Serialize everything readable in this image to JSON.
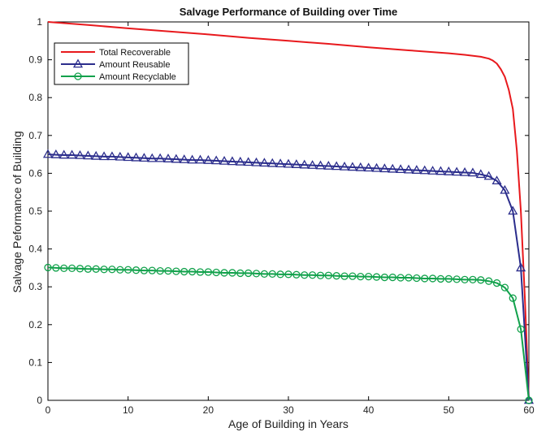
{
  "chart_data": {
    "type": "line",
    "title": "Salvage Performance of Building over Time",
    "xlabel": "Age of Building in Years",
    "ylabel": "Salvage Peformance of Building",
    "xlim": [
      0,
      60
    ],
    "ylim": [
      0,
      1
    ],
    "xticks": [
      "0",
      "10",
      "20",
      "30",
      "40",
      "50",
      "60"
    ],
    "yticks": [
      "0",
      "0.1",
      "0.2",
      "0.3",
      "0.4",
      "0.5",
      "0.6",
      "0.7",
      "0.8",
      "0.9",
      "1"
    ],
    "grid": false,
    "legend_position": "top-left",
    "series": [
      {
        "name": "Total Recoverable",
        "color": "#e8191d",
        "marker": "none",
        "x": [
          0,
          5,
          10,
          15,
          20,
          25,
          30,
          35,
          40,
          45,
          50,
          52,
          54,
          55,
          55.5,
          56,
          56.5,
          57,
          57.5,
          58,
          58.5,
          59,
          59.5,
          60
        ],
        "y": [
          1.0,
          0.992,
          0.983,
          0.975,
          0.967,
          0.958,
          0.95,
          0.942,
          0.933,
          0.925,
          0.917,
          0.913,
          0.908,
          0.903,
          0.898,
          0.89,
          0.875,
          0.855,
          0.82,
          0.77,
          0.66,
          0.5,
          0.27,
          0.0
        ]
      },
      {
        "name": "Amount Reusable",
        "color": "#2b2d8c",
        "marker": "triangle",
        "x": [
          0,
          1,
          2,
          3,
          4,
          5,
          6,
          7,
          8,
          9,
          10,
          11,
          12,
          13,
          14,
          15,
          16,
          17,
          18,
          19,
          20,
          21,
          22,
          23,
          24,
          25,
          26,
          27,
          28,
          29,
          30,
          31,
          32,
          33,
          34,
          35,
          36,
          37,
          38,
          39,
          40,
          41,
          42,
          43,
          44,
          45,
          46,
          47,
          48,
          49,
          50,
          51,
          52,
          53,
          54,
          55,
          56,
          57,
          58,
          59,
          60
        ],
        "y": [
          0.65,
          0.649,
          0.648,
          0.648,
          0.647,
          0.646,
          0.645,
          0.644,
          0.644,
          0.643,
          0.642,
          0.641,
          0.64,
          0.639,
          0.639,
          0.638,
          0.637,
          0.636,
          0.635,
          0.635,
          0.634,
          0.633,
          0.632,
          0.631,
          0.63,
          0.629,
          0.628,
          0.627,
          0.626,
          0.625,
          0.624,
          0.623,
          0.622,
          0.621,
          0.62,
          0.619,
          0.618,
          0.617,
          0.616,
          0.615,
          0.614,
          0.613,
          0.612,
          0.611,
          0.61,
          0.609,
          0.608,
          0.607,
          0.606,
          0.605,
          0.604,
          0.603,
          0.602,
          0.601,
          0.597,
          0.592,
          0.58,
          0.555,
          0.5,
          0.35,
          0.0
        ]
      },
      {
        "name": "Amount Recyclable",
        "color": "#11a14b",
        "marker": "circle",
        "x": [
          0,
          1,
          2,
          3,
          4,
          5,
          6,
          7,
          8,
          9,
          10,
          11,
          12,
          13,
          14,
          15,
          16,
          17,
          18,
          19,
          20,
          21,
          22,
          23,
          24,
          25,
          26,
          27,
          28,
          29,
          30,
          31,
          32,
          33,
          34,
          35,
          36,
          37,
          38,
          39,
          40,
          41,
          42,
          43,
          44,
          45,
          46,
          47,
          48,
          49,
          50,
          51,
          52,
          53,
          54,
          55,
          56,
          57,
          58,
          59,
          60
        ],
        "y": [
          0.351,
          0.35,
          0.349,
          0.349,
          0.348,
          0.347,
          0.347,
          0.346,
          0.346,
          0.345,
          0.345,
          0.344,
          0.343,
          0.343,
          0.342,
          0.342,
          0.341,
          0.34,
          0.34,
          0.339,
          0.339,
          0.338,
          0.337,
          0.337,
          0.336,
          0.336,
          0.335,
          0.334,
          0.334,
          0.333,
          0.333,
          0.332,
          0.331,
          0.331,
          0.33,
          0.33,
          0.329,
          0.328,
          0.328,
          0.327,
          0.327,
          0.326,
          0.325,
          0.325,
          0.324,
          0.324,
          0.323,
          0.322,
          0.322,
          0.321,
          0.321,
          0.32,
          0.319,
          0.319,
          0.318,
          0.315,
          0.31,
          0.298,
          0.27,
          0.188,
          0.0
        ]
      }
    ]
  }
}
